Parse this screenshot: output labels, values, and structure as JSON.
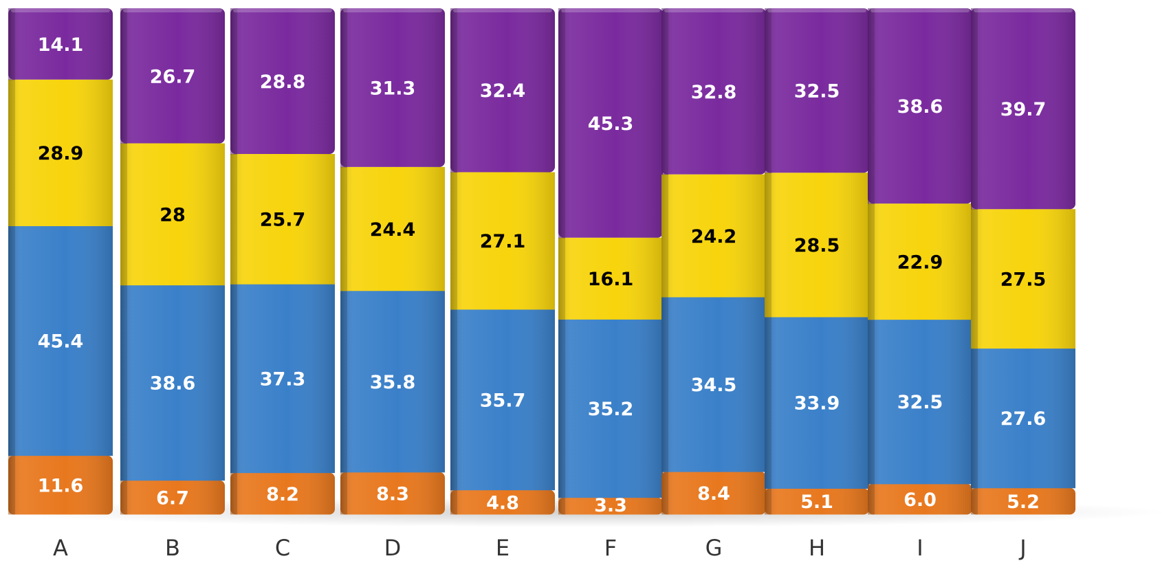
{
  "chart_data": {
    "type": "bar",
    "stacked": true,
    "style": "3d-stacked-columns",
    "categories": [
      "A",
      "B",
      "C",
      "D",
      "E",
      "F",
      "G",
      "H",
      "I",
      "J"
    ],
    "series": [
      {
        "color": "#e8781e",
        "label_color": "#ffffff",
        "values": [
          11.6,
          6.7,
          8.2,
          8.3,
          4.8,
          3.3,
          8.4,
          5.1,
          6.0,
          5.2
        ],
        "labels": [
          "11.6",
          "6.7",
          "8.2",
          "8.3",
          "4.8",
          "3.3",
          "8.4",
          "5.1",
          "6.0",
          "5.2"
        ]
      },
      {
        "color": "#3a80c9",
        "label_color": "#ffffff",
        "values": [
          45.4,
          38.6,
          37.3,
          35.8,
          35.7,
          35.2,
          34.5,
          33.9,
          32.5,
          27.6
        ],
        "labels": [
          "45.4",
          "38.6",
          "37.3",
          "35.8",
          "35.7",
          "35.2",
          "34.5",
          "33.9",
          "32.5",
          "27.6"
        ]
      },
      {
        "color": "#f7d40c",
        "label_color": "#000000",
        "values": [
          28.9,
          28,
          25.7,
          24.4,
          27.1,
          16.1,
          24.2,
          28.5,
          22.9,
          27.5
        ],
        "labels": [
          "28.9",
          "28",
          "25.7",
          "24.4",
          "27.1",
          "16.1",
          "24.2",
          "28.5",
          "22.9",
          "27.5"
        ]
      },
      {
        "color": "#7a2a9e",
        "label_color": "#ffffff",
        "values": [
          14.1,
          26.7,
          28.8,
          31.3,
          32.4,
          45.3,
          32.8,
          32.5,
          38.6,
          39.7
        ],
        "labels": [
          "14.1",
          "26.7",
          "28.8",
          "31.3",
          "32.4",
          "45.3",
          "32.8",
          "32.5",
          "38.6",
          "39.7"
        ]
      }
    ],
    "grid": false,
    "legend": "none",
    "axis_line": false
  }
}
